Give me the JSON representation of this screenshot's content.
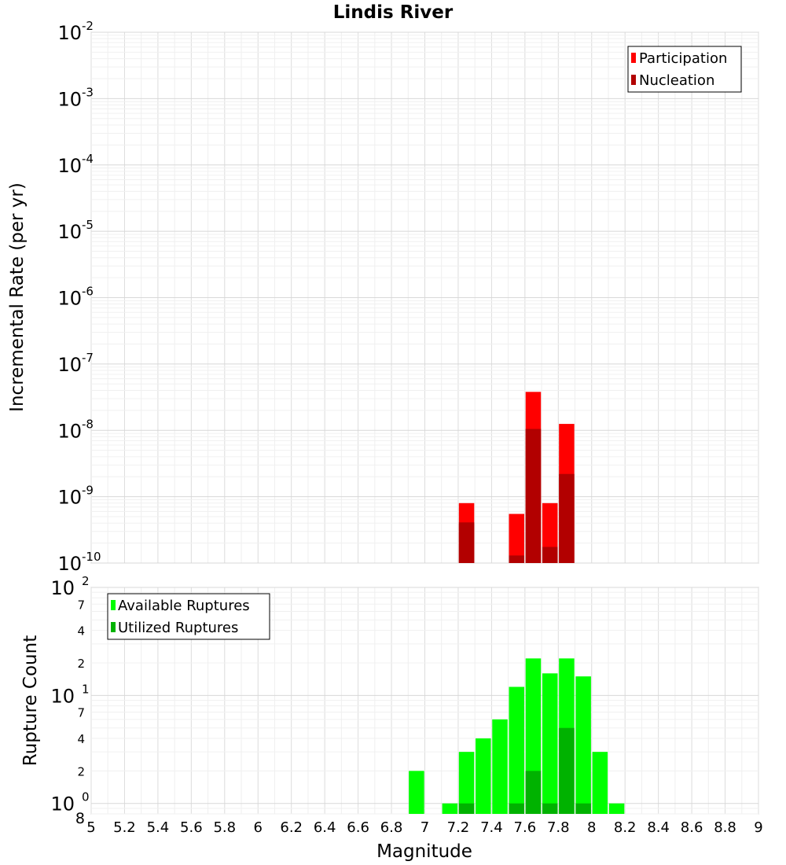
{
  "title": "Lindis River",
  "chart_data": [
    {
      "type": "bar",
      "title": "Lindis River",
      "xlabel": "Magnitude",
      "ylabel": "Incremental Rate (per yr)",
      "yscale": "log",
      "ylim": [
        1e-10,
        0.01
      ],
      "xlim": [
        5,
        9
      ],
      "xticks": [
        "5",
        "5.2",
        "5.4",
        "5.6",
        "5.8",
        "6",
        "6.2",
        "6.4",
        "6.6",
        "6.8",
        "7",
        "7.2",
        "7.4",
        "7.6",
        "7.8",
        "8",
        "8.2",
        "8.4",
        "8.6",
        "8.8",
        "9"
      ],
      "yticks": [
        {
          "base": "10",
          "exp": "-10"
        },
        {
          "base": "10",
          "exp": "-9"
        },
        {
          "base": "10",
          "exp": "-8"
        },
        {
          "base": "10",
          "exp": "-7"
        },
        {
          "base": "10",
          "exp": "-6"
        },
        {
          "base": "10",
          "exp": "-5"
        },
        {
          "base": "10",
          "exp": "-4"
        },
        {
          "base": "10",
          "exp": "-3"
        },
        {
          "base": "10",
          "exp": "-2"
        }
      ],
      "grid": true,
      "legend_position": "top-right",
      "series": [
        {
          "name": "Participation",
          "color": "#ff0000",
          "points": [
            [
              7.25,
              8e-10
            ],
            [
              7.55,
              5.5e-10
            ],
            [
              7.65,
              3.8e-08
            ],
            [
              7.75,
              8e-10
            ],
            [
              7.85,
              1.25e-08
            ]
          ]
        },
        {
          "name": "Nucleation",
          "color": "#b20000",
          "points": [
            [
              7.25,
              4.1e-10
            ],
            [
              7.55,
              1.3e-10
            ],
            [
              7.65,
              1.05e-08
            ],
            [
              7.75,
              1.75e-10
            ],
            [
              7.85,
              2.2e-09
            ]
          ]
        }
      ]
    },
    {
      "type": "bar",
      "xlabel": "Magnitude",
      "ylabel": "Rupture Count",
      "yscale": "log",
      "ylim": [
        0.8,
        100
      ],
      "xlim": [
        5,
        9
      ],
      "ytick_labels": [
        {
          "value": 1,
          "base": "10",
          "exp": "0"
        },
        {
          "value": 10,
          "base": "10",
          "exp": "1"
        },
        {
          "value": 100,
          "base": "10",
          "exp": "2"
        }
      ],
      "minor_tick_labels": [
        {
          "value": 0.8,
          "label": "8"
        },
        {
          "value": 2,
          "label": "2"
        },
        {
          "value": 4,
          "label": "4"
        },
        {
          "value": 7,
          "label": "7"
        },
        {
          "value": 20,
          "label": "2"
        },
        {
          "value": 40,
          "label": "4"
        },
        {
          "value": 70,
          "label": "7"
        }
      ],
      "grid": true,
      "legend_position": "top-left",
      "series": [
        {
          "name": "Available Ruptures",
          "color": "#00ff00",
          "points": [
            [
              6.95,
              2
            ],
            [
              7.15,
              1
            ],
            [
              7.25,
              3
            ],
            [
              7.35,
              4
            ],
            [
              7.45,
              6
            ],
            [
              7.55,
              12
            ],
            [
              7.65,
              22
            ],
            [
              7.75,
              16
            ],
            [
              7.85,
              22
            ],
            [
              7.95,
              15
            ],
            [
              8.05,
              3
            ],
            [
              8.15,
              1
            ]
          ]
        },
        {
          "name": "Utilized Ruptures",
          "color": "#00b200",
          "points": [
            [
              7.25,
              1
            ],
            [
              7.55,
              1
            ],
            [
              7.65,
              2
            ],
            [
              7.75,
              1
            ],
            [
              7.85,
              5
            ],
            [
              7.95,
              1
            ]
          ]
        }
      ]
    }
  ]
}
